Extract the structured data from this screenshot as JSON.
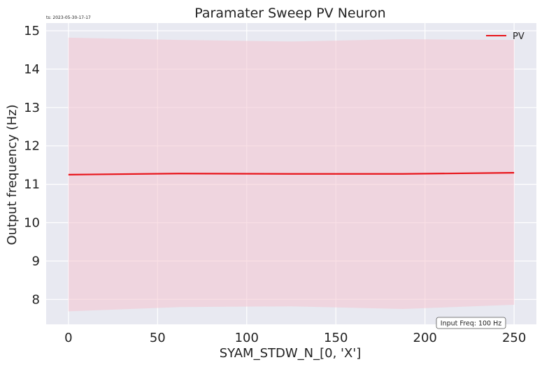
{
  "timestamp": "ts: 2023-05-30-17-17",
  "annotation": "Input Freq: 100 Hz",
  "colors": {
    "plot_bg": "#e8e9f1",
    "grid": "#ffffff",
    "line": "#e8141a",
    "band": "#f4c4cf"
  },
  "chart_data": {
    "type": "line",
    "title": "Paramater Sweep PV Neuron",
    "xlabel": "SYAM_STDW_N_[0, 'X']",
    "ylabel": "Output frequency (Hz)",
    "xlim": [
      -12.5,
      262.5
    ],
    "ylim": [
      7.35,
      15.2
    ],
    "xticks": [
      0,
      50,
      100,
      150,
      200,
      250
    ],
    "yticks": [
      8,
      9,
      10,
      11,
      12,
      13,
      14,
      15
    ],
    "grid": true,
    "legend": "top-right",
    "series": [
      {
        "name": "PV",
        "x": [
          0,
          62.5,
          125,
          187.5,
          250
        ],
        "y": [
          11.25,
          11.28,
          11.27,
          11.27,
          11.3
        ],
        "upper": [
          14.82,
          14.76,
          14.72,
          14.78,
          14.76
        ],
        "lower": [
          7.69,
          7.8,
          7.82,
          7.75,
          7.86
        ]
      }
    ]
  }
}
